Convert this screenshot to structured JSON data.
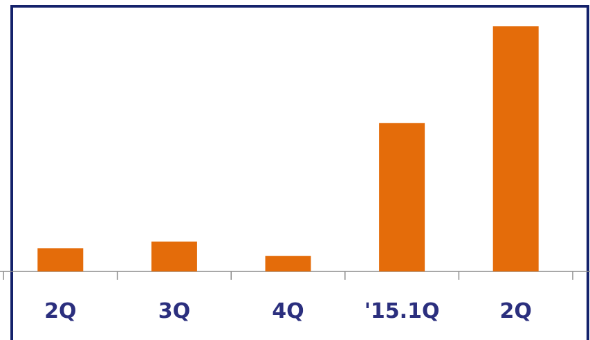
{
  "colors": {
    "frame": "#14226b",
    "bar": "#e46c0a",
    "axis": "#8c8c8c",
    "label": "#2b2f7e"
  },
  "chart_data": {
    "type": "bar",
    "categories": [
      "2Q",
      "3Q",
      "4Q",
      "'15.1Q",
      "2Q"
    ],
    "values": [
      9.5,
      12.2,
      6.3,
      60.5,
      100
    ],
    "title": "",
    "xlabel": "",
    "ylabel": "",
    "ylim": [
      0,
      100
    ],
    "grid": false,
    "legend": "none"
  }
}
